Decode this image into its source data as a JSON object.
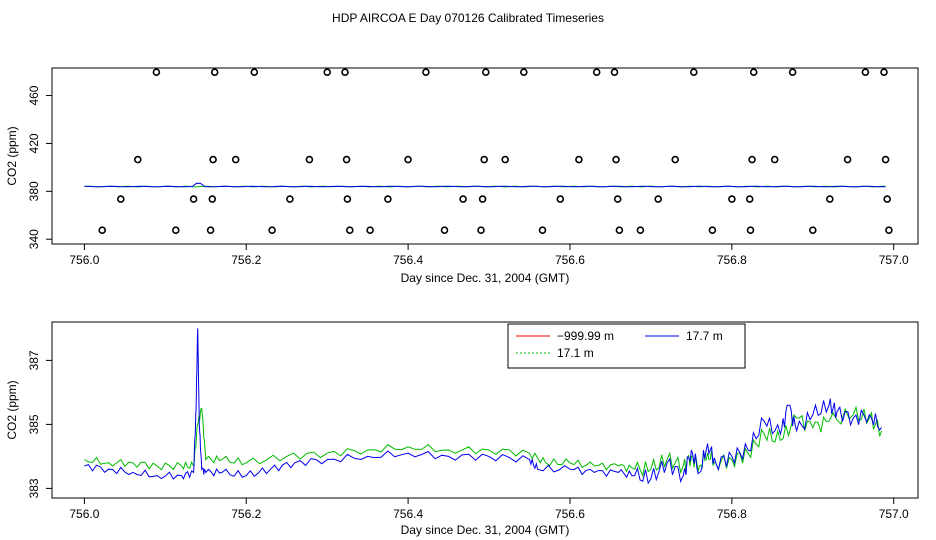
{
  "title": "HDP AIRCOA E  Day 070126  Calibrated Timeseries",
  "chart_data": [
    {
      "type": "scatter",
      "xlabel": "Day since Dec. 31, 2004 (GMT)",
      "ylabel": "CO2 (ppm)",
      "xlim": [
        755.96,
        757.03
      ],
      "ylim": [
        336,
        483
      ],
      "xticks": [
        756.0,
        756.2,
        756.4,
        756.6,
        756.8,
        757.0
      ],
      "xtick_labels": [
        "756.0",
        "756.2",
        "756.4",
        "756.6",
        "756.8",
        "757.0"
      ],
      "yticks": [
        340,
        380,
        420,
        460
      ],
      "ytick_labels": [
        "340",
        "380",
        "420",
        "460"
      ],
      "colors": {
        "green": "#00bb00",
        "blue": "#0000ee"
      },
      "circles": [
        [
          756.022,
          347.5
        ],
        [
          756.045,
          373.5
        ],
        [
          756.066,
          406.5
        ],
        [
          756.089,
          479.5
        ],
        [
          756.113,
          347.5
        ],
        [
          756.135,
          373.5
        ],
        [
          756.156,
          347.5
        ],
        [
          756.158,
          373.5
        ],
        [
          756.159,
          406.5
        ],
        [
          756.161,
          479.5
        ],
        [
          756.187,
          406.5
        ],
        [
          756.21,
          479.5
        ],
        [
          756.232,
          347.5
        ],
        [
          756.254,
          373.5
        ],
        [
          756.278,
          406.5
        ],
        [
          756.3,
          479.5
        ],
        [
          756.322,
          479.5
        ],
        [
          756.324,
          406.5
        ],
        [
          756.325,
          373.5
        ],
        [
          756.328,
          347.5
        ],
        [
          756.353,
          347.5
        ],
        [
          756.375,
          373.5
        ],
        [
          756.4,
          406.5
        ],
        [
          756.422,
          479.5
        ],
        [
          756.445,
          347.5
        ],
        [
          756.468,
          373.5
        ],
        [
          756.49,
          347.5
        ],
        [
          756.492,
          373.5
        ],
        [
          756.494,
          406.5
        ],
        [
          756.496,
          479.5
        ],
        [
          756.52,
          406.5
        ],
        [
          756.543,
          479.5
        ],
        [
          756.566,
          347.5
        ],
        [
          756.588,
          373.5
        ],
        [
          756.611,
          406.5
        ],
        [
          756.633,
          479.5
        ],
        [
          756.655,
          479.5
        ],
        [
          756.657,
          406.5
        ],
        [
          756.659,
          373.5
        ],
        [
          756.661,
          347.5
        ],
        [
          756.687,
          347.5
        ],
        [
          756.709,
          373.5
        ],
        [
          756.73,
          406.5
        ],
        [
          756.753,
          479.5
        ],
        [
          756.776,
          347.5
        ],
        [
          756.8,
          373.5
        ],
        [
          756.822,
          373.5
        ],
        [
          756.823,
          347.5
        ],
        [
          756.825,
          406.5
        ],
        [
          756.827,
          479.5
        ],
        [
          756.853,
          406.5
        ],
        [
          756.875,
          479.5
        ],
        [
          756.9,
          347.5
        ],
        [
          756.921,
          373.5
        ],
        [
          756.943,
          406.5
        ],
        [
          756.965,
          479.5
        ],
        [
          756.988,
          479.5
        ],
        [
          756.99,
          406.5
        ],
        [
          756.992,
          373.5
        ],
        [
          756.994,
          347.5
        ]
      ],
      "line_level": 384.0
    },
    {
      "type": "line",
      "xlabel": "Day since Dec. 31, 2004 (GMT)",
      "ylabel": "CO2 (ppm)",
      "xlim": [
        755.96,
        757.03
      ],
      "ylim": [
        382.7,
        388.2
      ],
      "xticks": [
        756.0,
        756.2,
        756.4,
        756.6,
        756.8,
        757.0
      ],
      "xtick_labels": [
        "756.0",
        "756.2",
        "756.4",
        "756.6",
        "756.8",
        "757.0"
      ],
      "yticks": [
        383,
        385,
        387
      ],
      "ytick_labels": [
        "383",
        "385",
        "387"
      ],
      "legend": {
        "placement": "top-center",
        "entries": [
          {
            "label": "−999.99 m",
            "color": "#ff0000"
          },
          {
            "label": "17.7 m",
            "color": "#0000ee"
          },
          {
            "label": "17.1 m",
            "color": "#00bb00"
          }
        ]
      },
      "series": [
        {
          "name": "17.7 m",
          "color": "#0000ee",
          "x": [
            756.0,
            756.03,
            756.06,
            756.09,
            756.12,
            756.135,
            756.138,
            756.14,
            756.142,
            756.145,
            756.15,
            756.17,
            756.2,
            756.23,
            756.26,
            756.3,
            756.35,
            756.4,
            756.45,
            756.5,
            756.55,
            756.56,
            756.6,
            756.63,
            756.66,
            756.68,
            756.7,
            756.72,
            756.74,
            756.75,
            756.76,
            756.77,
            756.78,
            756.8,
            756.82,
            756.84,
            756.86,
            756.87,
            756.88,
            756.9,
            756.92,
            756.93,
            756.95,
            756.97,
            756.985
          ],
          "y": [
            383.7,
            383.6,
            383.5,
            383.4,
            383.4,
            383.5,
            385.5,
            388.0,
            385.0,
            383.6,
            383.5,
            383.5,
            383.4,
            383.6,
            383.8,
            383.9,
            384.0,
            384.1,
            384.0,
            384.0,
            383.9,
            383.6,
            383.6,
            383.5,
            383.5,
            383.4,
            383.3,
            383.8,
            383.4,
            384.2,
            383.5,
            384.4,
            383.8,
            384.0,
            384.2,
            385.1,
            384.7,
            385.6,
            384.8,
            385.3,
            385.6,
            385.4,
            385.2,
            385.3,
            384.9
          ]
        },
        {
          "name": "17.1 m",
          "color": "#00bb00",
          "x": [
            756.0,
            756.03,
            756.06,
            756.09,
            756.12,
            756.135,
            756.14,
            756.145,
            756.15,
            756.17,
            756.2,
            756.25,
            756.3,
            756.35,
            756.4,
            756.45,
            756.5,
            756.55,
            756.57,
            756.6,
            756.63,
            756.66,
            756.68,
            756.7,
            756.72,
            756.74,
            756.75,
            756.76,
            756.77,
            756.78,
            756.8,
            756.82,
            756.84,
            756.86,
            756.88,
            756.9,
            756.92,
            756.95,
            756.97,
            756.985
          ],
          "y": [
            383.9,
            383.8,
            383.8,
            383.7,
            383.7,
            383.7,
            385.0,
            385.5,
            383.9,
            383.9,
            383.8,
            384.0,
            384.1,
            384.2,
            384.3,
            384.2,
            384.2,
            384.1,
            383.8,
            383.8,
            383.7,
            383.7,
            383.6,
            383.6,
            383.9,
            383.7,
            384.0,
            383.7,
            384.1,
            383.8,
            383.9,
            384.1,
            384.7,
            384.5,
            385.2,
            384.9,
            385.1,
            385.3,
            385.2,
            384.8
          ]
        }
      ]
    }
  ]
}
